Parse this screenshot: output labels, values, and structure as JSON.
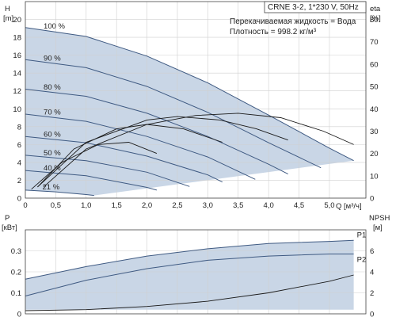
{
  "header": {
    "model": "CRNE 3-2, 1*230 V, 50Hz",
    "liquid_line": "Перекачиваемая жидкость = Вода",
    "density_line": "Плотность = 998.2 кг/м³"
  },
  "colors": {
    "envelope_fill": "#c9d6e6",
    "curve_stroke": "#3f5a82",
    "eta_stroke": "#1a1a1a",
    "frame": "#444444",
    "grid": "#d0d0d0"
  },
  "chart_data": [
    {
      "type": "line",
      "panel": "top",
      "y_left_label": "H",
      "y_left_unit": "[m]",
      "y_right_label": "eta",
      "y_right_unit": "[%]",
      "xlabel": "Q [м³/ч]",
      "xlim": [
        0,
        5.6
      ],
      "ylim": [
        0,
        22
      ],
      "y2lim": [
        0,
        88
      ],
      "x_ticks": [
        "0",
        "0,5",
        "1,0",
        "1,5",
        "2,0",
        "2,5",
        "3,0",
        "3,5",
        "4,0",
        "4,5",
        "5,0"
      ],
      "y_ticks": [
        "0",
        "2",
        "4",
        "6",
        "8",
        "10",
        "12",
        "14",
        "16",
        "18",
        "20"
      ],
      "y2_ticks": [
        "0",
        "10",
        "20",
        "30",
        "40",
        "50",
        "60",
        "70",
        "80"
      ],
      "grid": true,
      "speed_labels": [
        "100 %",
        "90 %",
        "80 %",
        "70 %",
        "60 %",
        "50 %",
        "40 %",
        "21 %"
      ],
      "head_curves": [
        {
          "name": "100 %",
          "x": [
            0,
            1,
            2,
            3,
            4,
            5,
            5.4
          ],
          "y": [
            19.1,
            18.1,
            15.9,
            12.9,
            9.3,
            5.6,
            4.2
          ]
        },
        {
          "name": "90 %",
          "x": [
            0,
            1,
            2,
            3,
            4,
            4.86
          ],
          "y": [
            15.5,
            14.6,
            12.5,
            9.6,
            6.2,
            3.4
          ]
        },
        {
          "name": "80 %",
          "x": [
            0,
            1,
            2,
            3,
            4,
            4.32
          ],
          "y": [
            12.2,
            11.4,
            9.5,
            6.9,
            3.8,
            2.7
          ]
        },
        {
          "name": "70 %",
          "x": [
            0,
            1,
            2,
            3,
            3.78
          ],
          "y": [
            9.4,
            8.6,
            6.9,
            4.6,
            2.1
          ]
        },
        {
          "name": "60 %",
          "x": [
            0,
            1,
            2,
            3,
            3.24
          ],
          "y": [
            6.9,
            6.2,
            4.7,
            2.6,
            1.8
          ]
        },
        {
          "name": "50 %",
          "x": [
            0,
            1,
            2,
            2.7
          ],
          "y": [
            4.8,
            4.2,
            2.9,
            1.3
          ]
        },
        {
          "name": "40 %",
          "x": [
            0,
            1,
            2,
            2.16
          ],
          "y": [
            3.1,
            2.5,
            1.2,
            0.9
          ]
        },
        {
          "name": "21 %",
          "x": [
            0,
            0.5,
            1.0,
            1.13
          ],
          "y": [
            0.9,
            0.7,
            0.4,
            0.3
          ]
        }
      ],
      "efficiency_curves": [
        {
          "name": "eta 100 %",
          "x": [
            0.3,
            1,
            2,
            2.8,
            3.5,
            4.2,
            4.9,
            5.4
          ],
          "y": [
            5,
            22,
            33,
            37,
            38,
            36,
            30,
            24
          ]
        },
        {
          "name": "eta 80 %",
          "x": [
            0.2,
            1,
            2,
            2.5,
            3.2,
            3.8,
            4.32
          ],
          "y": [
            5,
            25,
            35,
            36.5,
            35,
            31,
            26
          ]
        },
        {
          "name": "eta 60 %",
          "x": [
            0.2,
            0.8,
            1.5,
            2.0,
            2.6,
            3.24
          ],
          "y": [
            5,
            22,
            31,
            33,
            31,
            25
          ]
        },
        {
          "name": "eta 40 %",
          "x": [
            0.1,
            0.6,
            1.2,
            1.7,
            2.16
          ],
          "y": [
            4,
            16,
            24,
            25,
            20
          ]
        }
      ]
    },
    {
      "type": "line",
      "panel": "bottom",
      "y_left_label": "P",
      "y_left_unit": "[кВт]",
      "y_right_label": "NPSH",
      "y_right_unit": "[м]",
      "xlim": [
        0,
        5.6
      ],
      "ylim": [
        0,
        0.4
      ],
      "y2lim": [
        0,
        8
      ],
      "y_ticks": [
        "0",
        "0.1",
        "0.2",
        "0.3"
      ],
      "y2_ticks": [
        "0",
        "2",
        "4",
        "6"
      ],
      "grid": true,
      "series": [
        {
          "name": "P1",
          "x": [
            0,
            1,
            2,
            3,
            4,
            5,
            5.4
          ],
          "y": [
            0.165,
            0.225,
            0.275,
            0.31,
            0.335,
            0.345,
            0.35
          ]
        },
        {
          "name": "P2",
          "x": [
            0,
            1,
            2,
            3,
            4,
            5,
            5.4
          ],
          "y": [
            0.085,
            0.16,
            0.215,
            0.255,
            0.275,
            0.285,
            0.285
          ]
        }
      ],
      "npsh": {
        "x": [
          0,
          1,
          2,
          3,
          4,
          5,
          5.4
        ],
        "y": [
          0.3,
          0.4,
          0.7,
          1.2,
          2.0,
          3.1,
          3.7
        ]
      }
    }
  ]
}
